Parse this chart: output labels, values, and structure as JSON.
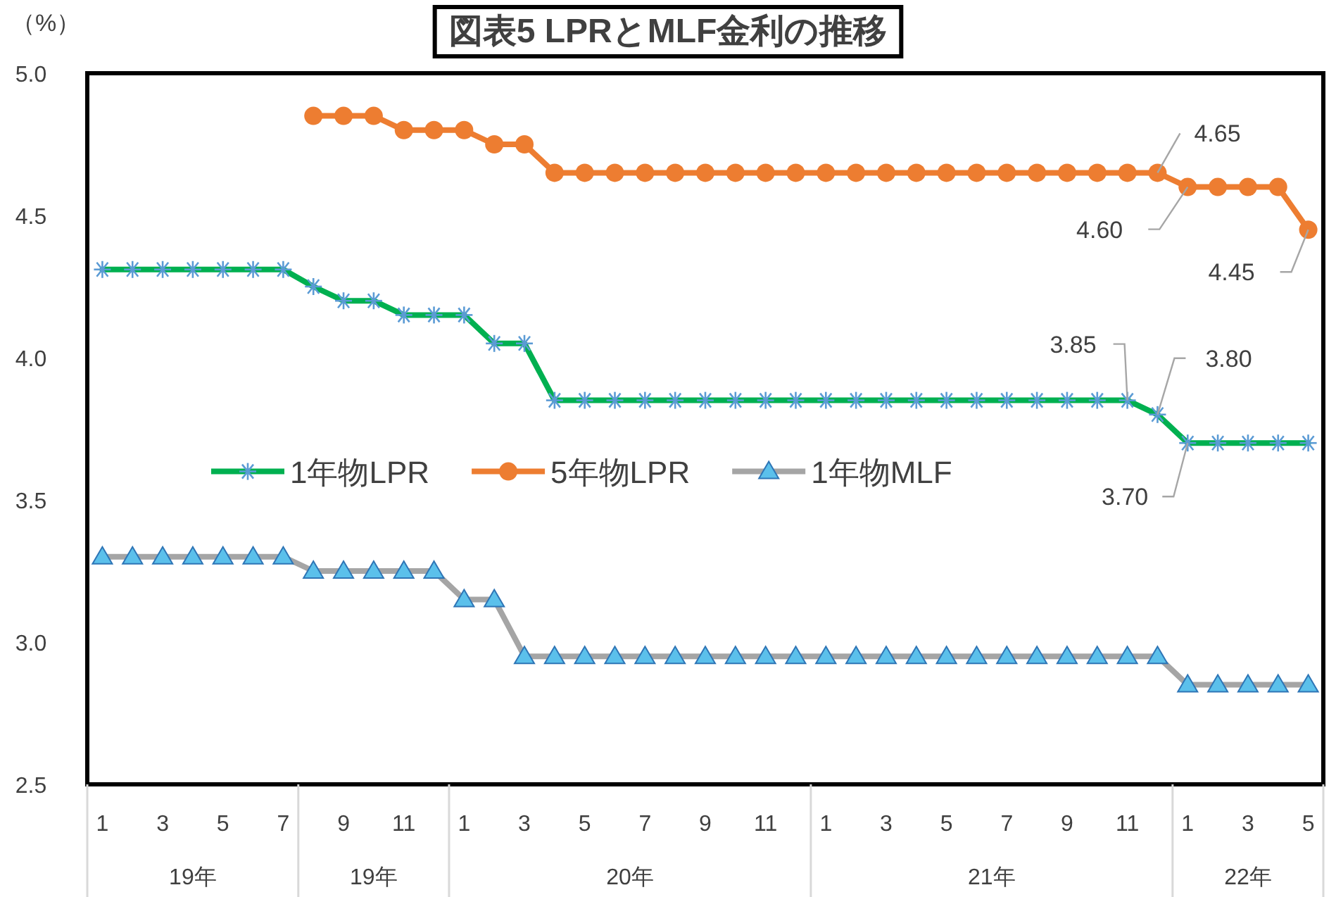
{
  "chart_data": {
    "type": "line",
    "title": "図表5 LPRとMLF金利の推移",
    "ylabel": "（%）",
    "categories": [
      "1",
      null,
      "3",
      null,
      "5",
      null,
      "7",
      null,
      "9",
      null,
      "11",
      null,
      "1",
      null,
      "3",
      null,
      "5",
      null,
      "7",
      null,
      "9",
      null,
      "11",
      null,
      "1",
      null,
      "3",
      null,
      "5",
      null,
      "7",
      null,
      "9",
      null,
      "11",
      null,
      "1",
      null,
      "3",
      null,
      "5"
    ],
    "series": [
      {
        "name": "1年物LPR",
        "color": "#00b050",
        "marker": "cross",
        "values": [
          4.31,
          4.31,
          4.31,
          4.31,
          4.31,
          4.31,
          4.31,
          4.25,
          4.2,
          4.2,
          4.15,
          4.15,
          4.15,
          4.05,
          4.05,
          3.85,
          3.85,
          3.85,
          3.85,
          3.85,
          3.85,
          3.85,
          3.85,
          3.85,
          3.85,
          3.85,
          3.85,
          3.85,
          3.85,
          3.85,
          3.85,
          3.85,
          3.85,
          3.85,
          3.85,
          3.8,
          3.7,
          3.7,
          3.7,
          3.7,
          3.7
        ],
        "value_labels": [
          null,
          null,
          null,
          null,
          null,
          null,
          null,
          null,
          null,
          null,
          null,
          null,
          null,
          null,
          null,
          null,
          null,
          null,
          null,
          null,
          null,
          null,
          null,
          null,
          null,
          null,
          null,
          null,
          null,
          null,
          null,
          null,
          null,
          null,
          "3.85",
          "3.80",
          "3.70",
          null,
          null,
          null,
          null
        ]
      },
      {
        "name": "5年物LPR",
        "color": "#ed7d31",
        "marker": "circle",
        "values": [
          null,
          null,
          null,
          null,
          null,
          null,
          null,
          4.85,
          4.85,
          4.85,
          4.8,
          4.8,
          4.8,
          4.75,
          4.75,
          4.65,
          4.65,
          4.65,
          4.65,
          4.65,
          4.65,
          4.65,
          4.65,
          4.65,
          4.65,
          4.65,
          4.65,
          4.65,
          4.65,
          4.65,
          4.65,
          4.65,
          4.65,
          4.65,
          4.65,
          4.65,
          4.6,
          4.6,
          4.6,
          4.6,
          4.45
        ],
        "value_labels": [
          null,
          null,
          null,
          null,
          null,
          null,
          null,
          null,
          null,
          null,
          null,
          null,
          null,
          null,
          null,
          null,
          null,
          null,
          null,
          null,
          null,
          null,
          null,
          null,
          null,
          null,
          null,
          null,
          null,
          null,
          null,
          null,
          null,
          null,
          null,
          "4.65",
          "4.60",
          null,
          null,
          null,
          "4.45"
        ]
      },
      {
        "name": "1年物MLF",
        "color": "#a5a5a5",
        "marker": "triangle",
        "values": [
          3.3,
          3.3,
          3.3,
          3.3,
          3.3,
          3.3,
          3.3,
          3.25,
          3.25,
          3.25,
          3.25,
          3.25,
          3.15,
          3.15,
          2.95,
          2.95,
          2.95,
          2.95,
          2.95,
          2.95,
          2.95,
          2.95,
          2.95,
          2.95,
          2.95,
          2.95,
          2.95,
          2.95,
          2.95,
          2.95,
          2.95,
          2.95,
          2.95,
          2.95,
          2.95,
          2.95,
          2.85,
          2.85,
          2.85,
          2.85,
          2.85
        ]
      }
    ],
    "ylim": [
      2.5,
      5.0
    ],
    "yticks": [
      {
        "value": 2.5,
        "label": "2.5"
      },
      {
        "value": 3,
        "label": "3.0"
      },
      {
        "value": 3.5,
        "label": "3.5"
      },
      {
        "value": 4,
        "label": "4.0"
      },
      {
        "value": 4.5,
        "label": "4.5"
      },
      {
        "value": 5,
        "label": "5.0"
      }
    ],
    "annotations": [
      "19年",
      "19年",
      "20年",
      "21年",
      "22年"
    ],
    "legend": "left",
    "grid": false
  }
}
